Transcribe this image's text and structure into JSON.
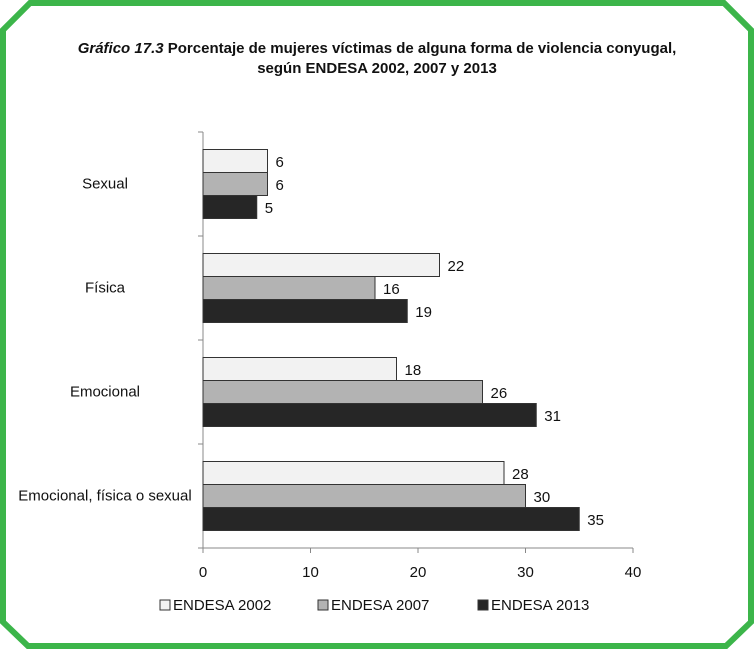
{
  "chart_data": {
    "type": "bar",
    "orientation": "horizontal",
    "title_label": "Gráfico 17.3",
    "title": [
      "Porcentaje de mujeres víctimas de alguna forma de violencia conyugal,",
      "según ENDESA 2002, 2007 y 2013"
    ],
    "categories": [
      "Sexual",
      "Física",
      "Emocional",
      "Emocional, física o sexual"
    ],
    "series": [
      {
        "name": "ENDESA 2002",
        "color": "#f2f2f2",
        "values": [
          6,
          22,
          18,
          28
        ]
      },
      {
        "name": "ENDESA 2007",
        "color": "#b3b3b3",
        "values": [
          6,
          16,
          26,
          30
        ]
      },
      {
        "name": "ENDESA 2013",
        "color": "#262626",
        "values": [
          5,
          19,
          31,
          35
        ]
      }
    ],
    "xlim": [
      0,
      40
    ],
    "xticks": [
      0,
      10,
      20,
      30,
      40
    ],
    "legend": "bottom"
  }
}
